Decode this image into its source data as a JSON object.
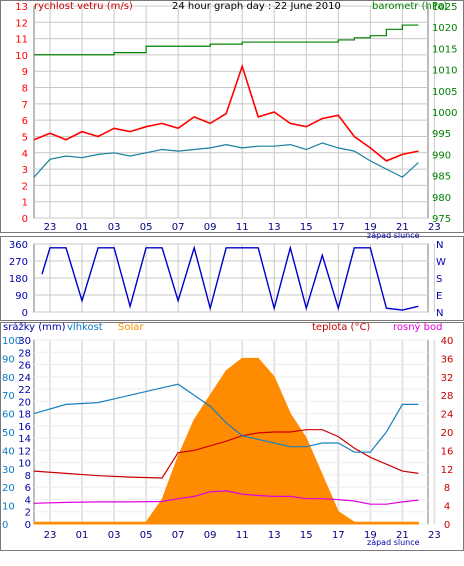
{
  "colors": {
    "panel_border": "#7a7a7a",
    "grid": "#c8c8c8",
    "wind_axis": "#ff0000",
    "baro_axis": "#008000",
    "dir_axis": "#0000aa",
    "rain_axis": "#0000aa",
    "hum_axis": "#0a7ac8",
    "temp_axis": "#cc0000",
    "solar_fill": "#ff8c00",
    "temp_line": "#cc0000",
    "hum_line": "#1a7fbf",
    "dew_line": "#e000e0",
    "wind_line": "#ff0000",
    "gust_line": "#1a7fa0",
    "baro_line": "#008000",
    "dir_line": "#0000cc"
  },
  "header": {
    "wind_label": "rychlost vetru (m/s)",
    "title": "24 hour graph day : 22 June 2010",
    "baro_label": "barometr (hPa)"
  },
  "footer": {
    "sunset_top": "západ slunce",
    "sunset_bottom": "západ slunce"
  },
  "legend_bottom": {
    "rain": "srážky (mm)",
    "humidity": "vlhkost",
    "solar": "Solar",
    "temperature": "teplota (°C)",
    "dew": "rosný bod"
  },
  "chart_data": [
    {
      "type": "line",
      "title": "24 hour graph day : 22 June 2010",
      "x_ticks": [
        "23",
        "01",
        "03",
        "05",
        "07",
        "09",
        "11",
        "13",
        "15",
        "17",
        "19",
        "21",
        "23"
      ],
      "ylabel_left": "rychlost vetru (m/s)",
      "ylabel_right": "barometr (hPa)",
      "ylim_left": [
        0,
        13
      ],
      "ylim_right": [
        975,
        1025
      ],
      "y_ticks_left": [
        "0",
        "1",
        "2",
        "3",
        "4",
        "5",
        "6",
        "7",
        "8",
        "9",
        "10",
        "11",
        "12",
        "13"
      ],
      "y_ticks_right": [
        "975",
        "980",
        "985",
        "990",
        "995",
        "1000",
        "1005",
        "1010",
        "1015",
        "1020",
        "1025"
      ],
      "series": [
        {
          "name": "wind_max",
          "axis": "left",
          "x": [
            22,
            23,
            24,
            25,
            26,
            27,
            28,
            29,
            30,
            31,
            32,
            33,
            34,
            35,
            36,
            37,
            38,
            39,
            40,
            41,
            42,
            43,
            44,
            45,
            46
          ],
          "values": [
            4.8,
            5.2,
            4.8,
            5.3,
            5.0,
            5.5,
            5.3,
            5.6,
            5.8,
            5.5,
            6.2,
            5.8,
            6.4,
            9.3,
            6.2,
            6.5,
            5.8,
            5.6,
            6.1,
            6.3,
            5.0,
            4.3,
            3.5,
            3.9,
            4.1
          ]
        },
        {
          "name": "wind_avg",
          "axis": "left",
          "x": [
            22,
            23,
            24,
            25,
            26,
            27,
            28,
            29,
            30,
            31,
            32,
            33,
            34,
            35,
            36,
            37,
            38,
            39,
            40,
            41,
            42,
            43,
            44,
            45,
            46
          ],
          "values": [
            2.5,
            3.6,
            3.8,
            3.7,
            3.9,
            4.0,
            3.8,
            4.0,
            4.2,
            4.1,
            4.2,
            4.3,
            4.5,
            4.3,
            4.4,
            4.4,
            4.5,
            4.2,
            4.6,
            4.3,
            4.1,
            3.5,
            3.0,
            2.5,
            3.4
          ]
        },
        {
          "name": "pressure",
          "axis": "right",
          "x": [
            22,
            24,
            25,
            27,
            29,
            32,
            33,
            35,
            38,
            41,
            42,
            43,
            44,
            45,
            46
          ],
          "values": [
            1013.5,
            1013.5,
            1013.5,
            1014.0,
            1015.5,
            1015.5,
            1016.0,
            1016.5,
            1016.5,
            1017.0,
            1017.5,
            1018.0,
            1019.5,
            1020.5,
            1020.5
          ]
        }
      ]
    },
    {
      "type": "line",
      "x_ticks": [
        "23",
        "01",
        "03",
        "05",
        "07",
        "09",
        "11",
        "13",
        "15",
        "17",
        "19",
        "21",
        "23"
      ],
      "ylim": [
        0,
        360
      ],
      "y_ticks": [
        "0",
        "90",
        "180",
        "270",
        "360"
      ],
      "right_labels": [
        "N",
        "W",
        "S",
        "E",
        "N"
      ],
      "series": [
        {
          "name": "wind_direction",
          "x": [
            22.5,
            23,
            24,
            25,
            26,
            27,
            28,
            29,
            30,
            31,
            32,
            33,
            34,
            35,
            36,
            37,
            38,
            39,
            40,
            41,
            42,
            43,
            44,
            45,
            46
          ],
          "values": [
            200,
            340,
            340,
            60,
            340,
            340,
            30,
            340,
            340,
            60,
            340,
            20,
            340,
            340,
            340,
            20,
            340,
            20,
            300,
            20,
            340,
            340,
            20,
            10,
            30
          ]
        }
      ]
    },
    {
      "type": "area",
      "x_ticks": [
        "23",
        "01",
        "03",
        "05",
        "07",
        "09",
        "11",
        "13",
        "15",
        "17",
        "19",
        "21",
        "23"
      ],
      "ylim_rain": [
        0,
        30
      ],
      "ylim_humidity": [
        0,
        100
      ],
      "ylim_temp": [
        0,
        40
      ],
      "y_ticks_rain": [
        "0",
        "2",
        "4",
        "6",
        "8",
        "10",
        "12",
        "14",
        "16",
        "18",
        "20",
        "22",
        "24",
        "26",
        "28",
        "30"
      ],
      "y_ticks_humidity": [
        "0",
        "10",
        "20",
        "30",
        "40",
        "50",
        "60",
        "70",
        "80",
        "90",
        "100"
      ],
      "y_ticks_temp": [
        "0",
        "4",
        "8",
        "12",
        "16",
        "20",
        "24",
        "28",
        "32",
        "36",
        "40"
      ],
      "series": [
        {
          "name": "Solar",
          "axis": "rain",
          "x": [
            22,
            29,
            30,
            31,
            32,
            33,
            34,
            35,
            36,
            37,
            38,
            39,
            40,
            41,
            42,
            46
          ],
          "values": [
            0.3,
            0.3,
            4,
            11,
            17,
            21,
            25,
            27,
            27,
            24,
            18,
            14,
            8,
            2,
            0.3,
            0.3
          ]
        },
        {
          "name": "teplota (°C)",
          "axis": "temp",
          "x": [
            22,
            24,
            26,
            28,
            30,
            31,
            32,
            33,
            34,
            35,
            36,
            37,
            38,
            39,
            40,
            41,
            42,
            43,
            44,
            45,
            46
          ],
          "values": [
            11.5,
            11.0,
            10.5,
            10.2,
            10.0,
            15.5,
            16.0,
            17.0,
            18.0,
            19.2,
            19.8,
            20.0,
            20.0,
            20.5,
            20.5,
            19.0,
            16.5,
            14.5,
            13.0,
            11.5,
            11.0
          ]
        },
        {
          "name": "vlhkost",
          "axis": "humidity",
          "x": [
            22,
            24,
            26,
            28,
            30,
            31,
            32,
            33,
            34,
            35,
            36,
            37,
            38,
            39,
            40,
            41,
            42,
            43,
            44,
            45,
            46
          ],
          "values": [
            60,
            65,
            66,
            70,
            74,
            76,
            70,
            64,
            55,
            48,
            46,
            44,
            42,
            42,
            44,
            44,
            39,
            39,
            50,
            65,
            65
          ]
        },
        {
          "name": "rosný bod",
          "axis": "temp",
          "x": [
            22,
            24,
            26,
            28,
            30,
            31,
            32,
            33,
            34,
            35,
            36,
            37,
            38,
            39,
            40,
            41,
            42,
            43,
            44,
            45,
            46
          ],
          "values": [
            4.5,
            4.7,
            4.8,
            4.8,
            4.9,
            5.5,
            6.0,
            7.0,
            7.2,
            6.5,
            6.2,
            6.0,
            6.0,
            5.5,
            5.5,
            5.3,
            5.0,
            4.3,
            4.3,
            4.8,
            5.2
          ]
        }
      ]
    }
  ]
}
